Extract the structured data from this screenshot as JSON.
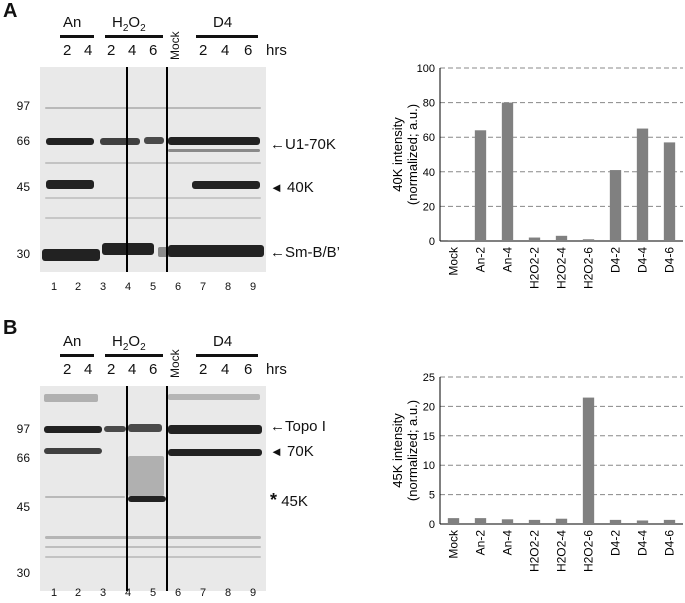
{
  "panels": [
    {
      "letter": "A",
      "groups": {
        "an": "An",
        "h2o2_prefix": "H",
        "h2o2_sub1": "2",
        "h2o2_mid": "O",
        "h2o2_sub2": "2",
        "mock": "Mock",
        "d4": "D4"
      },
      "hours": [
        "2",
        "4",
        "2",
        "4",
        "6",
        "2",
        "4",
        "6"
      ],
      "hrs_label": "hrs",
      "mw_markers": [
        "97",
        "66",
        "45",
        "30"
      ],
      "lanes": [
        "1",
        "2",
        "3",
        "4",
        "5",
        "6",
        "7",
        "8",
        "9"
      ],
      "bands": [
        {
          "arrow": "←",
          "label": "U1-70K"
        },
        {
          "arrow": "◄",
          "label": "40K"
        },
        {
          "arrow": "←",
          "label": "Sm-B/B’"
        }
      ]
    },
    {
      "letter": "B",
      "groups": {
        "an": "An",
        "h2o2_prefix": "H",
        "h2o2_sub1": "2",
        "h2o2_mid": "O",
        "h2o2_sub2": "2",
        "mock": "Mock",
        "d4": "D4"
      },
      "hours": [
        "2",
        "4",
        "2",
        "4",
        "6",
        "2",
        "4",
        "6"
      ],
      "hrs_label": "hrs",
      "mw_markers": [
        "97",
        "66",
        "45",
        "30"
      ],
      "lanes": [
        "1",
        "2",
        "3",
        "4",
        "5",
        "6",
        "7",
        "8",
        "9"
      ],
      "bands": [
        {
          "arrow": "←",
          "label": "Topo I"
        },
        {
          "arrow": "◄",
          "label": "70K"
        },
        {
          "arrow": "*",
          "label": "45K"
        }
      ]
    }
  ],
  "chart_data": [
    {
      "type": "bar",
      "categories": [
        "Mock",
        "An-2",
        "An-4",
        "H2O2-2",
        "H2O2-4",
        "H2O2-6",
        "D4-2",
        "D4-4",
        "D4-6"
      ],
      "values": [
        0.5,
        64,
        80,
        2,
        3,
        1,
        41,
        65,
        57
      ],
      "ylabel": "40K intensity (normalized; a.u.)",
      "ylabel_line1": "40K intensity",
      "ylabel_line2": "(normalized; a.u.)",
      "ylim": [
        0,
        100
      ],
      "yticks": [
        "0",
        "20",
        "40",
        "60",
        "80",
        "100"
      ],
      "grid": "dashed horizontal",
      "bar_color": "#808080"
    },
    {
      "type": "bar",
      "categories": [
        "Mock",
        "An-2",
        "An-4",
        "H2O2-2",
        "H2O2-4",
        "H2O2-6",
        "D4-2",
        "D4-4",
        "D4-6"
      ],
      "values": [
        1,
        1,
        0.8,
        0.7,
        0.9,
        21.5,
        0.7,
        0.6,
        0.7
      ],
      "ylabel": "45K intensity (normalized; a.u.)",
      "ylabel_line1": "45K intensity",
      "ylabel_line2": "(normalized; a.u.)",
      "ylim": [
        0,
        25
      ],
      "yticks": [
        "0",
        "5",
        "10",
        "15",
        "20",
        "25"
      ],
      "grid": "dashed horizontal",
      "bar_color": "#808080"
    }
  ]
}
